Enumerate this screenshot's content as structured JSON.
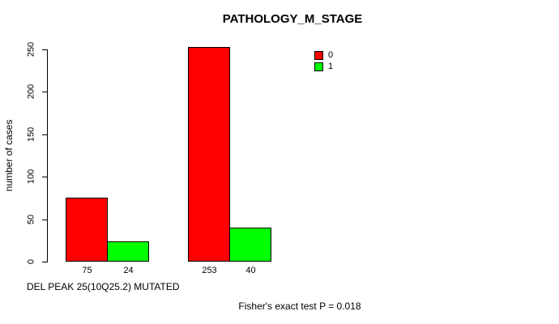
{
  "chart_data": {
    "type": "bar",
    "title": "PATHOLOGY_M_STAGE",
    "ylabel": "number of cases",
    "xlabel": "DEL PEAK 25(10Q25.2) MUTATED",
    "annotation": "Fisher's exact test P = 0.018",
    "ylim": [
      0,
      250
    ],
    "yticks": [
      0,
      50,
      100,
      150,
      200,
      250
    ],
    "grid": false,
    "legend_position": "top-right-inside",
    "bar_border_color": "#000000",
    "background_color": "#ffffff",
    "series": [
      {
        "name": "0",
        "color": "#ff0000",
        "values": [
          75,
          253
        ]
      },
      {
        "name": "1",
        "color": "#00ff00",
        "values": [
          24,
          40
        ]
      }
    ],
    "bar_value_labels": [
      "75",
      "24",
      "253",
      "40"
    ]
  }
}
